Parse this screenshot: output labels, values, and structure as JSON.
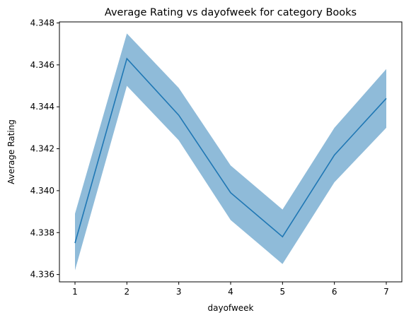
{
  "chart_data": {
    "type": "line",
    "title": "Average Rating vs dayofweek for category Books",
    "xlabel": "dayofweek",
    "ylabel": "Average Rating",
    "x": [
      1,
      2,
      3,
      4,
      5,
      6,
      7
    ],
    "series": [
      {
        "values": [
          4.3375,
          4.3463,
          4.3436,
          4.3399,
          4.3378,
          4.3417,
          4.3444
        ],
        "lower": [
          4.3362,
          4.345,
          4.3424,
          4.3386,
          4.3365,
          4.3404,
          4.343
        ],
        "upper": [
          4.3389,
          4.3475,
          4.3449,
          4.3412,
          4.3391,
          4.343,
          4.3458
        ],
        "color": "#1f77b4",
        "band_color": "#1f77b4"
      }
    ],
    "xlim": [
      0.7,
      7.3
    ],
    "ylim": [
      4.33565,
      4.34805
    ],
    "xticks": [
      1,
      2,
      3,
      4,
      5,
      6,
      7
    ],
    "xtick_labels": [
      "1",
      "2",
      "3",
      "4",
      "5",
      "6",
      "7"
    ],
    "yticks": [
      4.336,
      4.338,
      4.34,
      4.342,
      4.344,
      4.346,
      4.348
    ],
    "ytick_labels": [
      "4.336",
      "4.338",
      "4.340",
      "4.342",
      "4.344",
      "4.346",
      "4.348"
    ],
    "grid": false,
    "legend": false
  }
}
